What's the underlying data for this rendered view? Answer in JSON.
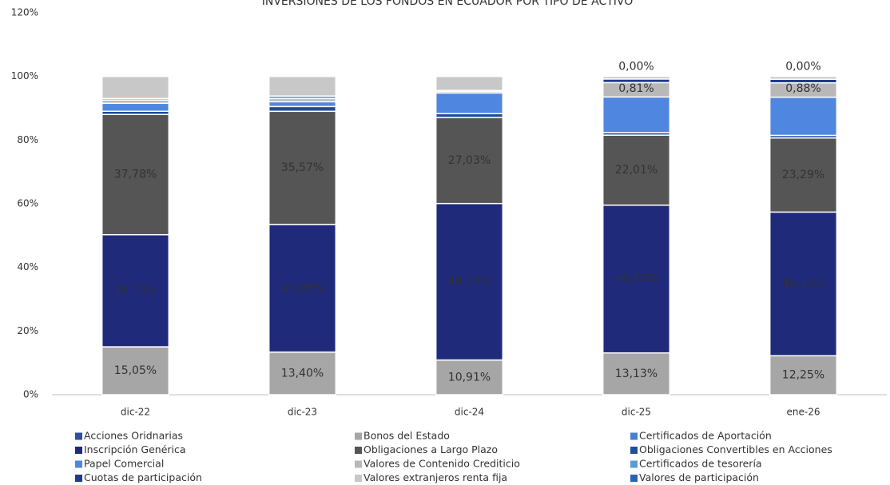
{
  "chart_data": {
    "type": "stacked_bar",
    "title": "INVERSIONES DE LOS FONDOS EN ECUADOR POR TIPO DE ACTIVO",
    "categories": [
      "dic-22",
      "dic-23",
      "dic-24",
      "dic-25",
      "ene-26"
    ],
    "ylim": [
      0,
      120
    ],
    "yticks": [
      {
        "value": 0,
        "label": "0%"
      },
      {
        "value": 20,
        "label": "20%"
      },
      {
        "value": 40,
        "label": "40%"
      },
      {
        "value": 60,
        "label": "60%"
      },
      {
        "value": 80,
        "label": "80%"
      },
      {
        "value": 100,
        "label": "100%"
      },
      {
        "value": 120,
        "label": "120%"
      }
    ],
    "grid": false,
    "legend": "bottom",
    "series": [
      {
        "name": "Acciones Oridnarias",
        "color": "#2e4fa0",
        "values": [
          0,
          0,
          0,
          0,
          0
        ]
      },
      {
        "name": "Bonos del Estado",
        "color": "#a6a6a6",
        "values": [
          15.05,
          13.4,
          10.91,
          13.13,
          12.25
        ],
        "value_labels": [
          "15,05%",
          "13,40%",
          "10,91%",
          "13,13%",
          "12,25%"
        ]
      },
      {
        "name": "Certificados de Aportación",
        "color": "#4a7fd0",
        "values": [
          0,
          0,
          0,
          0,
          0
        ]
      },
      {
        "name": "Inscripción Genérica",
        "color": "#1f2a7a",
        "values": [
          35.23,
          40.08,
          49.17,
          46.42,
          45.14
        ],
        "value_labels": [
          "35,23%",
          "40,08%",
          "49,17%",
          "46,42%",
          "45,14%"
        ]
      },
      {
        "name": "Obligaciones a Largo Plazo",
        "color": "#555555",
        "values": [
          37.78,
          35.57,
          27.03,
          22.01,
          23.29
        ],
        "value_labels": [
          "37,78%",
          "35,57%",
          "27,03%",
          "22,01%",
          "23,29%"
        ]
      },
      {
        "name": "Obligaciones Convertibles en Acciones",
        "color": "#1f4e9a",
        "values": [
          1.0,
          1.5,
          1.2,
          0.8,
          0.8
        ]
      },
      {
        "name": "Papel Comercial",
        "color": "#4f86e0",
        "values": [
          2.5,
          1.5,
          6.5,
          11.2,
          12.0
        ]
      },
      {
        "name": "Valores de Contenido Crediticio",
        "color": "#b8b8b8",
        "values": [
          1.0,
          1.0,
          0.5,
          4.5,
          4.5
        ]
      },
      {
        "name": "Certificados de tesorería",
        "color": "#5b9bd5",
        "values": [
          0.5,
          0.8,
          0.3,
          0,
          0
        ]
      },
      {
        "name": "Cuotas de participación",
        "color": "#203a8c",
        "values": [
          0,
          0,
          0,
          1.13,
          1.14
        ]
      },
      {
        "name": "Valores extranjeros renta fija",
        "color": "#c8c8c8",
        "values": [
          6.94,
          6.15,
          4.39,
          0.81,
          0.88
        ],
        "value_labels": [
          null,
          null,
          null,
          "0,81%",
          "0,88%"
        ]
      },
      {
        "name": "Valores de participación",
        "color": "#2a62b8",
        "values": [
          0,
          0,
          0,
          0,
          0
        ],
        "value_labels": [
          null,
          null,
          null,
          "0,00%",
          "0,00%"
        ]
      }
    ]
  }
}
